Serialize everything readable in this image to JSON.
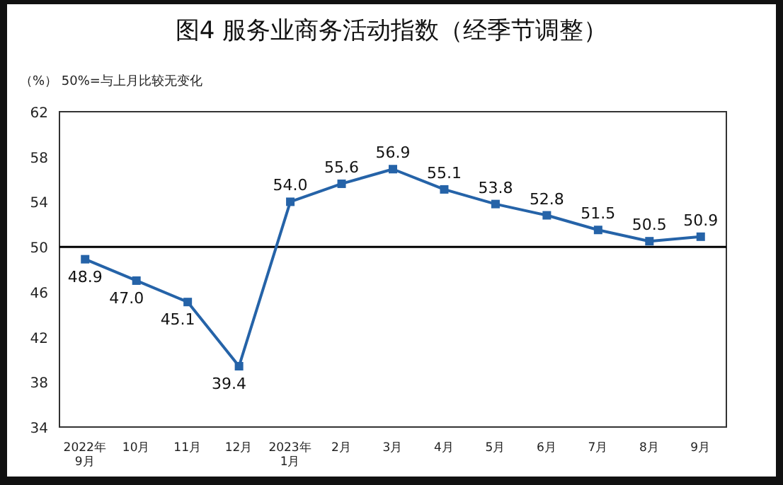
{
  "chart_data": {
    "type": "line",
    "title": "图4  服务业商务活动指数（经季节调整）",
    "subtitle": "（%） 50%=与上月比较无变化",
    "categories": [
      "2022年\n9月",
      "10月",
      "11月",
      "12月",
      "2023年\n1月",
      "2月",
      "3月",
      "4月",
      "5月",
      "6月",
      "7月",
      "8月",
      "9月"
    ],
    "series": [
      {
        "color": "#2563a8",
        "values": [
          48.9,
          47.0,
          45.1,
          39.4,
          54.0,
          55.6,
          56.9,
          55.1,
          53.8,
          52.8,
          51.5,
          50.5,
          50.9
        ],
        "value_labels": [
          "48.9",
          "47.0",
          "45.1",
          "39.4",
          "54.0",
          "55.6",
          "56.9",
          "55.1",
          "53.8",
          "52.8",
          "51.5",
          "50.5",
          "50.9"
        ]
      }
    ],
    "ylim": [
      34,
      62
    ],
    "yticks": [
      34,
      38,
      42,
      46,
      50,
      54,
      58,
      62
    ],
    "ref_lines": [
      {
        "axis": "y",
        "value": 50,
        "color": "#000000",
        "line_style": "solid"
      }
    ],
    "marker": "square",
    "line_style": "solid",
    "grid": false
  }
}
